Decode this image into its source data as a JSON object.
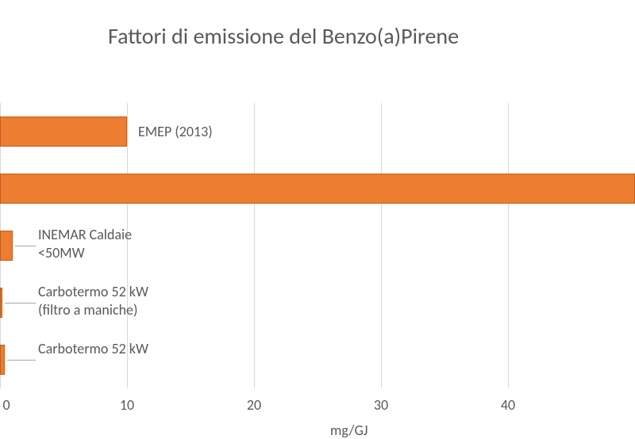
{
  "chart": {
    "type": "bar-horizontal",
    "title": "Fattori di emissione del Benzo(a)Pirene",
    "title_fontsize": 28,
    "title_color": "#595959",
    "background_color": "#ffffff",
    "xlabel": "mg/GJ",
    "label_fontsize": 18,
    "label_color": "#595959",
    "xlim_min": 0,
    "xlim_max": 50,
    "xtick_step": 10,
    "xticks": [
      0,
      10,
      20,
      30,
      40
    ],
    "grid_color": "#d9d9d9",
    "bar_color": "#ed7d31",
    "bar_border_color": "#c05e1f",
    "grid_line_width": 1,
    "bars": [
      {
        "label": "EMEP (2013)",
        "value": 10.0
      },
      {
        "label": "",
        "value": 50.0
      },
      {
        "label": "INEMAR Caldaie\n<50MW",
        "value": 1.0
      },
      {
        "label": "Carbotermo 52 kW\n(filtro a maniche)",
        "value": 0.2
      },
      {
        "label": "Carbotermo 52 kW",
        "value": 0.4
      }
    ]
  }
}
